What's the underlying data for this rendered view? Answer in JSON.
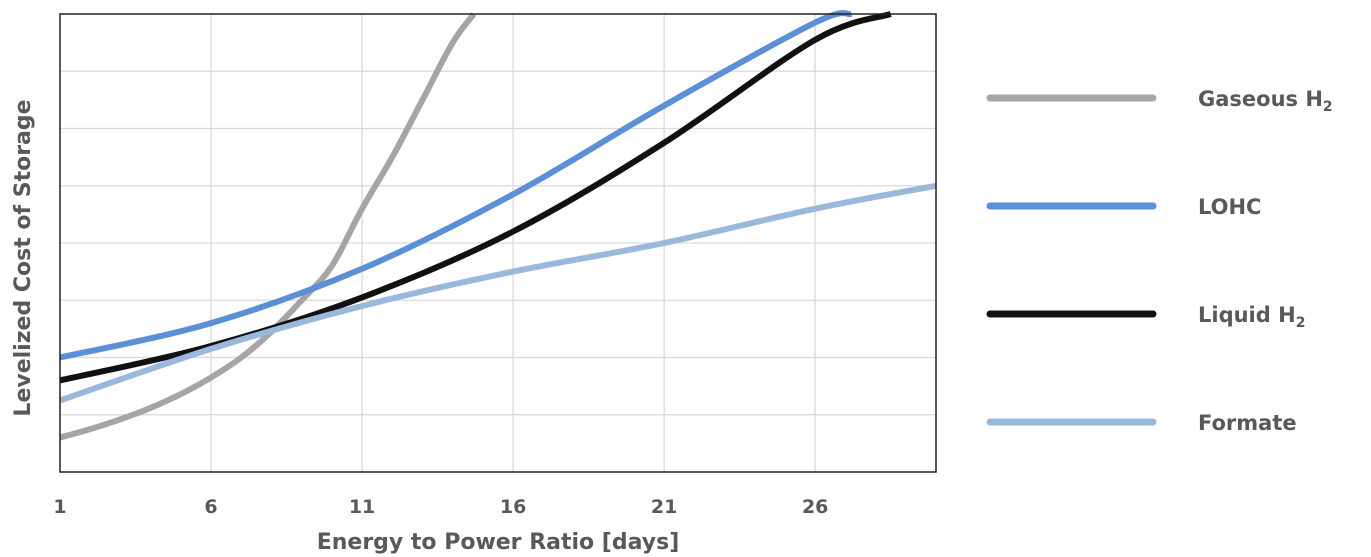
{
  "chart_data": {
    "type": "line",
    "xlabel": "Energy to Power Ratio [days]",
    "ylabel": "Levelized Cost of Storage",
    "xlim": [
      1,
      30
    ],
    "ylim": [
      0,
      8
    ],
    "xticks": [
      1,
      6,
      11,
      16,
      21,
      26
    ],
    "grid": true,
    "yticklabels": false,
    "legend_position": "right",
    "series": [
      {
        "name": "Gaseous H",
        "name_subscript": "2",
        "color": "#a5a5a5",
        "x": [
          1,
          2,
          3,
          4,
          5,
          6,
          7,
          8,
          9,
          10,
          11,
          12,
          13,
          14,
          14.7
        ],
        "y": [
          0.6,
          0.75,
          0.92,
          1.12,
          1.36,
          1.65,
          2.0,
          2.45,
          3.0,
          3.6,
          4.6,
          5.5,
          6.5,
          7.5,
          8.0
        ]
      },
      {
        "name": "LOHC",
        "color": "#5b8fd6",
        "x": [
          1,
          6,
          11,
          16,
          21,
          26,
          27.2
        ],
        "y": [
          2.0,
          2.6,
          3.55,
          4.85,
          6.4,
          7.85,
          8.0
        ]
      },
      {
        "name": "Liquid H",
        "name_subscript": "2",
        "color": "#111111",
        "x": [
          1,
          6,
          11,
          16,
          21,
          26,
          28.5
        ],
        "y": [
          1.6,
          2.2,
          3.05,
          4.2,
          5.75,
          7.55,
          8.0
        ]
      },
      {
        "name": "Formate",
        "color": "#99b8db",
        "x": [
          1,
          6,
          11,
          16,
          21,
          26,
          30
        ],
        "y": [
          1.25,
          2.15,
          2.9,
          3.5,
          4.0,
          4.6,
          5.0
        ]
      }
    ]
  }
}
